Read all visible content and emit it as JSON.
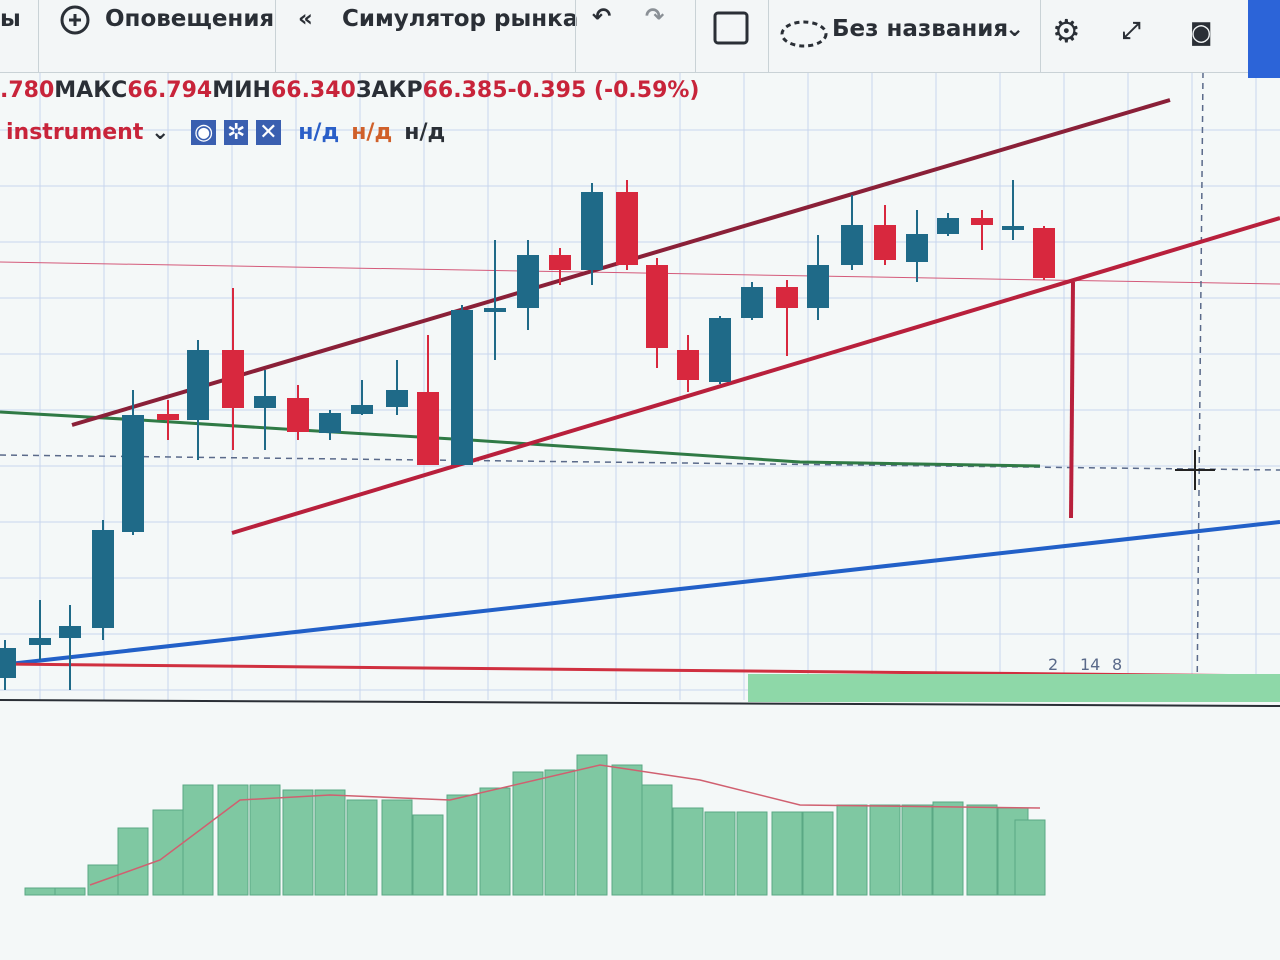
{
  "toolbar": {
    "items": [
      "ы",
      "Оповещения",
      "Симулятор рынка"
    ],
    "layout_name": "Без названия"
  },
  "legend": {
    "open_fragment": ".780",
    "high_label": "МАКС",
    "high": "66.794",
    "low_label": "МИН",
    "low": "66.340",
    "close_label": "ЗАКР",
    "close": "66.385",
    "change": "-0.395 (-0.59%)"
  },
  "indicator": {
    "name": "instrument",
    "values": [
      "н/д",
      "н/д",
      "н/д"
    ]
  },
  "markers": [
    "2",
    "14",
    "8"
  ]
}
